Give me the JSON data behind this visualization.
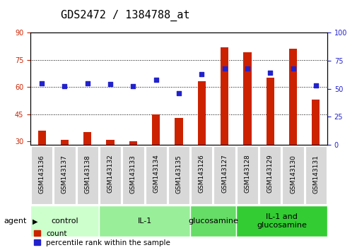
{
  "title": "GDS2472 / 1384788_at",
  "samples": [
    "GSM143136",
    "GSM143137",
    "GSM143138",
    "GSM143132",
    "GSM143133",
    "GSM143134",
    "GSM143135",
    "GSM143126",
    "GSM143127",
    "GSM143128",
    "GSM143129",
    "GSM143130",
    "GSM143131"
  ],
  "count_values": [
    36,
    31,
    35,
    31,
    30,
    45,
    43,
    63,
    82,
    79,
    65,
    81,
    53
  ],
  "percentile_values": [
    55,
    52,
    55,
    54,
    52,
    58,
    46,
    63,
    68,
    68,
    64,
    68,
    53
  ],
  "groups": [
    {
      "label": "control",
      "start": 0,
      "end": 3
    },
    {
      "label": "IL-1",
      "start": 3,
      "end": 7
    },
    {
      "label": "glucosamine",
      "start": 7,
      "end": 9
    },
    {
      "label": "IL-1 and\nglucosamine",
      "start": 9,
      "end": 13
    }
  ],
  "group_colors": [
    "#ccffcc",
    "#99ee99",
    "#66dd66",
    "#33cc33"
  ],
  "ylim_left": [
    28,
    90
  ],
  "yticks_left": [
    30,
    45,
    60,
    75,
    90
  ],
  "ylim_right": [
    0,
    100
  ],
  "yticks_right": [
    0,
    25,
    50,
    75,
    100
  ],
  "bar_color": "#cc2200",
  "dot_color": "#2222cc",
  "bar_width": 0.35,
  "bg_color": "#ffffff",
  "title_fontsize": 11,
  "tick_fontsize": 7,
  "group_label_fontsize": 8,
  "legend_fontsize": 7.5
}
